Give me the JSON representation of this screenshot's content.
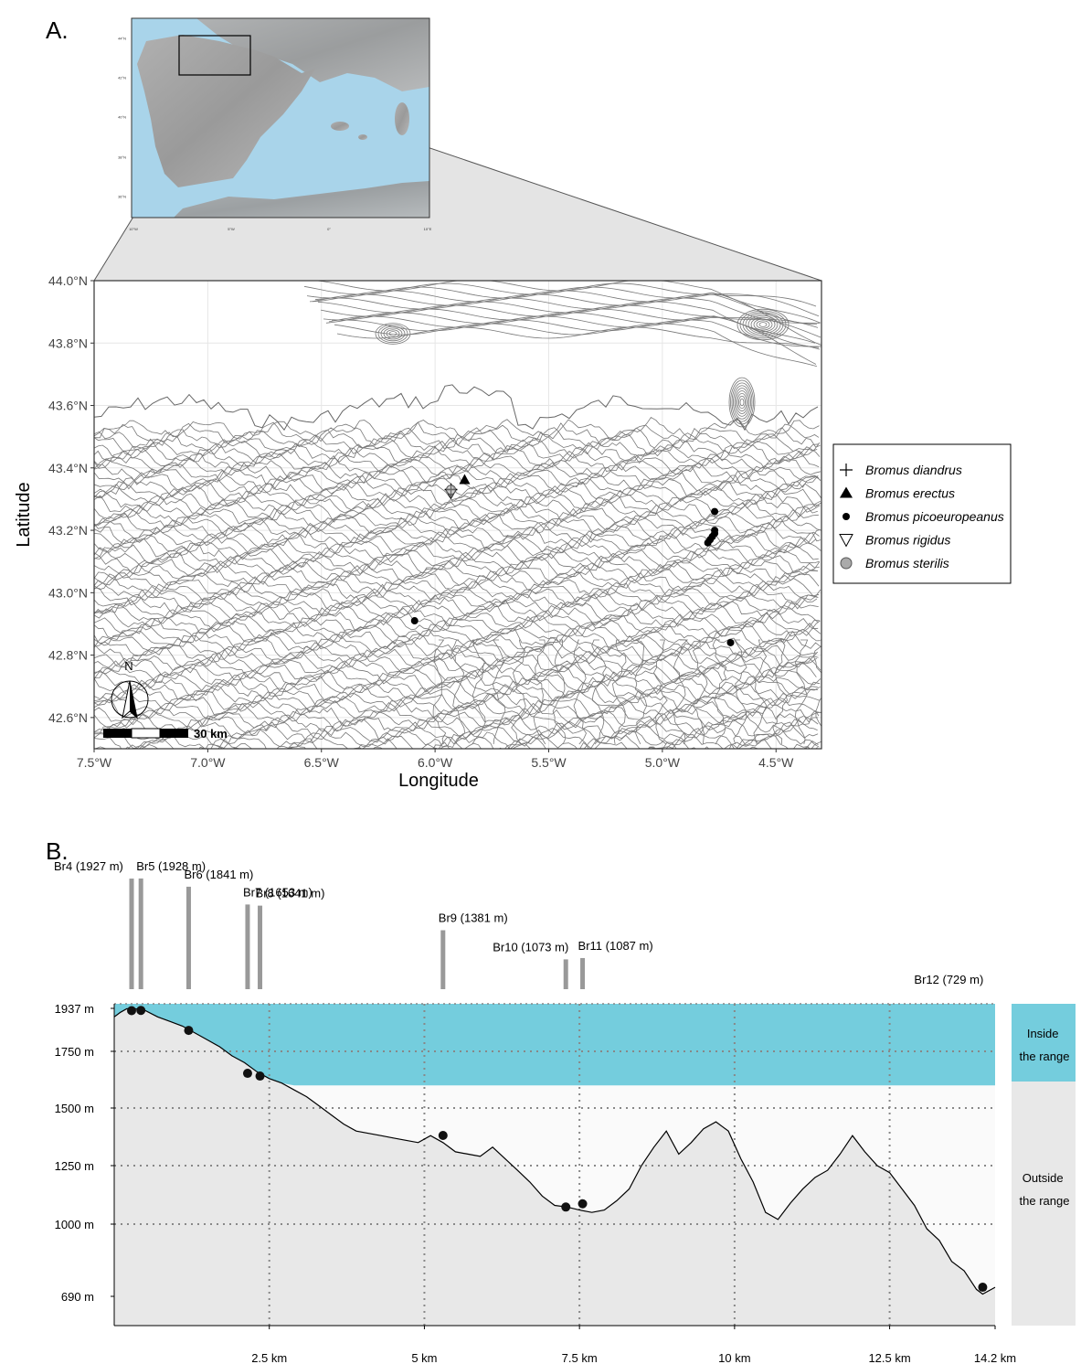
{
  "panel_a": {
    "label": "A.",
    "inset": {
      "lat_labels": [
        "44°N",
        "42°N",
        "40°N",
        "38°N",
        "36°N"
      ],
      "lon_labels": [
        "10°W",
        "5°W",
        "0°",
        "10°E"
      ]
    },
    "map": {
      "xlabel": "Longitude",
      "ylabel": "Latitude",
      "x_ticks": [
        "7.5°W",
        "7.0°W",
        "6.5°W",
        "6.0°W",
        "5.5°W",
        "5.0°W",
        "4.5°W"
      ],
      "y_ticks": [
        "44.0°N",
        "43.8°N",
        "43.6°N",
        "43.4°N",
        "43.2°N",
        "43.0°N",
        "42.8°N",
        "42.6°N"
      ],
      "xlim": [
        -7.5,
        -4.3
      ],
      "ylim": [
        42.5,
        44.0
      ],
      "north_label": "N",
      "scale_label": "30 km"
    },
    "legend": [
      {
        "label": "Bromus diandrus",
        "symbol": "plus"
      },
      {
        "label": "Bromus erectus",
        "symbol": "triangle"
      },
      {
        "label": "Bromus picoeuropeanus",
        "symbol": "dot"
      },
      {
        "label": "Bromus rigidus",
        "symbol": "triangle-down"
      },
      {
        "label": "Bromus sterilis",
        "symbol": "grey-circle"
      }
    ]
  },
  "panel_b": {
    "label": "B.",
    "band_inside": "Inside\nthe range",
    "band_outside": "Outside\nthe range",
    "colors": {
      "inside": "#74cddd",
      "outside": "#e8e8e8"
    }
  },
  "chart_data": [
    {
      "type": "scatter",
      "xlabel": "Longitude",
      "ylabel": "Latitude",
      "xlim": [
        -7.5,
        -4.3
      ],
      "ylim": [
        42.5,
        44.0
      ],
      "grid": true,
      "legend_position": "right",
      "series": [
        {
          "name": "Bromus diandrus",
          "points": [
            [
              -5.93,
              43.33
            ]
          ]
        },
        {
          "name": "Bromus erectus",
          "points": [
            [
              -5.87,
              43.36
            ]
          ]
        },
        {
          "name": "Bromus picoeuropeanus",
          "points": [
            [
              -6.09,
              42.91
            ],
            [
              -4.77,
              43.26
            ],
            [
              -4.77,
              43.2
            ],
            [
              -4.77,
              43.19
            ],
            [
              -4.78,
              43.18
            ],
            [
              -4.79,
              43.17
            ],
            [
              -4.8,
              43.16
            ],
            [
              -4.7,
              42.84
            ]
          ]
        },
        {
          "name": "Bromus rigidus",
          "points": [
            [
              -5.93,
              43.32
            ]
          ]
        },
        {
          "name": "Bromus sterilis",
          "points": [
            [
              -5.93,
              43.33
            ]
          ]
        }
      ]
    },
    {
      "type": "area",
      "x_ticks": [
        {
          "value": 2.5,
          "label": "2.5 km"
        },
        {
          "value": 5,
          "label": "5 km"
        },
        {
          "value": 7.5,
          "label": "7.5 km"
        },
        {
          "value": 10,
          "label": "10 km"
        },
        {
          "value": 12.5,
          "label": "12.5 km"
        },
        {
          "value": 14.2,
          "label": "14.2 km"
        }
      ],
      "y_ticks": [
        {
          "value": 1937,
          "label": "1937 m"
        },
        {
          "value": 1750,
          "label": "1750 m"
        },
        {
          "value": 1500,
          "label": "1500 m"
        },
        {
          "value": 1250,
          "label": "1250 m"
        },
        {
          "value": 1000,
          "label": "1000 m"
        },
        {
          "value": 690,
          "label": "690 m"
        }
      ],
      "xlim": [
        0,
        14.2
      ],
      "ylim": [
        570,
        1950
      ],
      "range_limit": 1600,
      "x": [
        0,
        0.1,
        0.2,
        0.3,
        0.5,
        0.7,
        0.9,
        1.1,
        1.3,
        1.5,
        1.7,
        1.9,
        2.1,
        2.3,
        2.5,
        2.7,
        2.9,
        3.1,
        3.3,
        3.5,
        3.7,
        3.9,
        4.1,
        4.3,
        4.5,
        4.7,
        4.9,
        5.1,
        5.3,
        5.5,
        5.7,
        5.9,
        6.1,
        6.3,
        6.5,
        6.7,
        6.9,
        7.1,
        7.3,
        7.5,
        7.7,
        7.9,
        8.1,
        8.3,
        8.5,
        8.7,
        8.9,
        9.1,
        9.3,
        9.5,
        9.7,
        9.8,
        9.9,
        10.1,
        10.3,
        10.5,
        10.7,
        10.9,
        11.1,
        11.3,
        11.5,
        11.7,
        11.9,
        12.1,
        12.3,
        12.5,
        12.7,
        12.9,
        13.1,
        13.3,
        13.5,
        13.7,
        13.9,
        14.0,
        14.2
      ],
      "values": [
        1900,
        1920,
        1935,
        1937,
        1928,
        1900,
        1880,
        1860,
        1830,
        1800,
        1770,
        1730,
        1700,
        1660,
        1630,
        1610,
        1580,
        1550,
        1510,
        1470,
        1430,
        1400,
        1390,
        1380,
        1370,
        1360,
        1350,
        1380,
        1350,
        1310,
        1300,
        1290,
        1330,
        1280,
        1230,
        1180,
        1120,
        1080,
        1073,
        1060,
        1050,
        1060,
        1100,
        1150,
        1250,
        1330,
        1400,
        1300,
        1350,
        1410,
        1440,
        1420,
        1400,
        1280,
        1180,
        1050,
        1020,
        1090,
        1150,
        1200,
        1230,
        1300,
        1380,
        1310,
        1250,
        1220,
        1150,
        1080,
        980,
        930,
        840,
        800,
        720,
        700,
        729
      ],
      "annotations": [
        {
          "label": "Br4 (1927 m)",
          "x": 0.28,
          "elev": 1927
        },
        {
          "label": "Br5 (1928 m)",
          "x": 0.43,
          "elev": 1928
        },
        {
          "label": "Br6 (1841 m)",
          "x": 1.2,
          "elev": 1841
        },
        {
          "label": "Br7 (1653 m)",
          "x": 2.15,
          "elev": 1653
        },
        {
          "label": "Br8 (1641 m)",
          "x": 2.35,
          "elev": 1641
        },
        {
          "label": "Br9 (1381 m)",
          "x": 5.3,
          "elev": 1381
        },
        {
          "label": "Br10 (1073 m)",
          "x": 7.28,
          "elev": 1073
        },
        {
          "label": "Br11 (1087 m)",
          "x": 7.55,
          "elev": 1087
        },
        {
          "label": "Br12 (729 m)",
          "x": 14.0,
          "elev": 729
        }
      ]
    }
  ]
}
